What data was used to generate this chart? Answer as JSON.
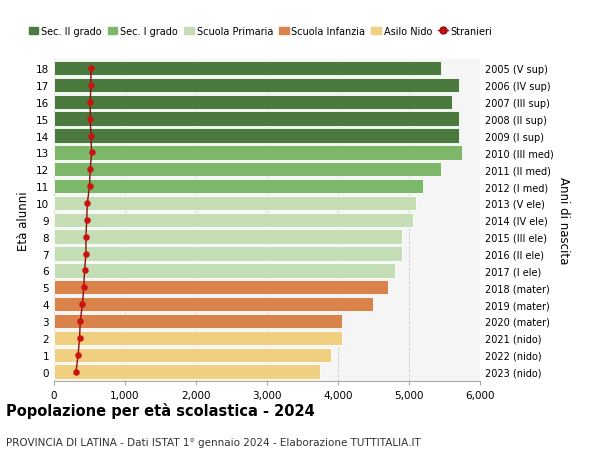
{
  "ages": [
    18,
    17,
    16,
    15,
    14,
    13,
    12,
    11,
    10,
    9,
    8,
    7,
    6,
    5,
    4,
    3,
    2,
    1,
    0
  ],
  "years": [
    "2005 (V sup)",
    "2006 (IV sup)",
    "2007 (III sup)",
    "2008 (II sup)",
    "2009 (I sup)",
    "2010 (III med)",
    "2011 (II med)",
    "2012 (I med)",
    "2013 (V ele)",
    "2014 (IV ele)",
    "2015 (III ele)",
    "2016 (II ele)",
    "2017 (I ele)",
    "2018 (mater)",
    "2019 (mater)",
    "2020 (mater)",
    "2021 (nido)",
    "2022 (nido)",
    "2023 (nido)"
  ],
  "values": [
    5450,
    5700,
    5600,
    5700,
    5700,
    5750,
    5450,
    5200,
    5100,
    5050,
    4900,
    4900,
    4800,
    4700,
    4500,
    4050,
    4050,
    3900,
    3750
  ],
  "stranieri": [
    520,
    520,
    510,
    510,
    520,
    530,
    510,
    500,
    470,
    460,
    450,
    450,
    430,
    420,
    400,
    370,
    360,
    340,
    310
  ],
  "bar_colors": [
    "#4a7a3d",
    "#4a7a3d",
    "#4a7a3d",
    "#4a7a3d",
    "#4a7a3d",
    "#7db86a",
    "#7db86a",
    "#7db86a",
    "#c5ddb5",
    "#c5ddb5",
    "#c5ddb5",
    "#c5ddb5",
    "#c5ddb5",
    "#d9824a",
    "#d9824a",
    "#d9824a",
    "#f0d080",
    "#f0d080",
    "#f0d080"
  ],
  "legend_labels": [
    "Sec. II grado",
    "Sec. I grado",
    "Scuola Primaria",
    "Scuola Infanzia",
    "Asilo Nido",
    "Stranieri"
  ],
  "legend_colors": [
    "#4a7a3d",
    "#7db86a",
    "#c5ddb5",
    "#d9824a",
    "#f0d080",
    "#cc1111"
  ],
  "stranieri_color": "#cc1111",
  "stranieri_line_color": "#8b1010",
  "title": "Popolazione per età scolastica - 2024",
  "subtitle": "PROVINCIA DI LATINA - Dati ISTAT 1° gennaio 2024 - Elaborazione TUTTITALIA.IT",
  "ylabel": "Età alunni",
  "y2label": "Anni di nascita",
  "xlim": [
    0,
    6000
  ],
  "bar_height": 0.85,
  "bg_color": "#f5f5f5",
  "grid_color": "#cccccc"
}
